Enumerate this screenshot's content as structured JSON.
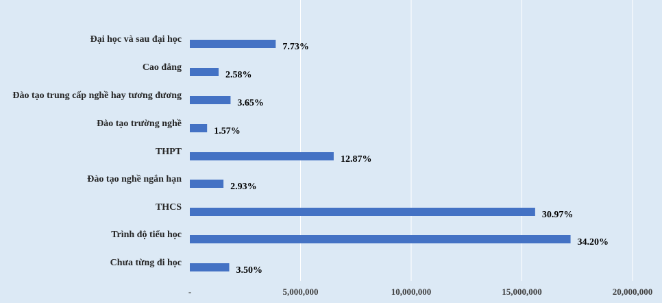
{
  "chart_data": {
    "type": "bar",
    "orientation": "horizontal",
    "categories": [
      "Đại học và sau đại học",
      "Cao đẳng",
      "Đào tạo trung cấp nghề hay tương đương",
      "Đào tạo trường nghề",
      "THPT",
      "Đào tạo nghề ngắn hạn",
      "THCS",
      "Trình độ tiểu học",
      "Chưa từng đi học"
    ],
    "values": [
      3880000,
      1300000,
      1840000,
      780000,
      6500000,
      1520000,
      15600000,
      17200000,
      1780000
    ],
    "data_labels": [
      "7.73%",
      "2.58%",
      "3.65%",
      "1.57%",
      "12.87%",
      "2.93%",
      "30.97%",
      "34.20%",
      "3.50%"
    ],
    "xlim": [
      0,
      20000000
    ],
    "xticks": [
      0,
      5000000,
      10000000,
      15000000,
      20000000
    ],
    "xtick_labels": [
      "-",
      "5,000,000",
      "10,000,000",
      "15,000,000",
      "20,000,000"
    ],
    "bar_color": "#4472c4",
    "background_color": "#dce9f5",
    "grid": true,
    "legend": false
  }
}
